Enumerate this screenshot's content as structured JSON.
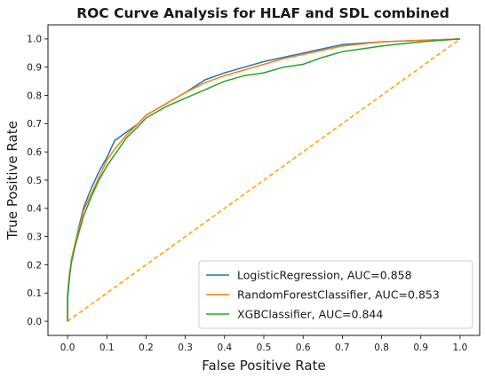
{
  "chart_data": {
    "type": "line",
    "title": "ROC Curve Analysis for HLAF and SDL combined",
    "xlabel": "False Positive Rate",
    "ylabel": "True Positive Rate",
    "xlim": [
      -0.05,
      1.05
    ],
    "ylim": [
      -0.05,
      1.05
    ],
    "x_ticks": [
      "0.0",
      "0.1",
      "0.2",
      "0.3",
      "0.4",
      "0.5",
      "0.6",
      "0.7",
      "0.8",
      "0.9",
      "1.0"
    ],
    "y_ticks": [
      "0.0",
      "0.1",
      "0.2",
      "0.3",
      "0.4",
      "0.5",
      "0.6",
      "0.7",
      "0.8",
      "0.9",
      "1.0"
    ],
    "legend_position": "lower-right",
    "grid": false,
    "series": [
      {
        "name": "LogisticRegression, AUC=0.858",
        "color": "#1f77b4",
        "style": "solid",
        "points": [
          [
            0,
            0
          ],
          [
            0,
            0.08
          ],
          [
            0.005,
            0.16
          ],
          [
            0.01,
            0.22
          ],
          [
            0.02,
            0.28
          ],
          [
            0.03,
            0.34
          ],
          [
            0.04,
            0.4
          ],
          [
            0.06,
            0.47
          ],
          [
            0.08,
            0.53
          ],
          [
            0.1,
            0.58
          ],
          [
            0.12,
            0.64
          ],
          [
            0.15,
            0.67
          ],
          [
            0.18,
            0.7
          ],
          [
            0.2,
            0.73
          ],
          [
            0.25,
            0.77
          ],
          [
            0.3,
            0.81
          ],
          [
            0.35,
            0.855
          ],
          [
            0.4,
            0.88
          ],
          [
            0.45,
            0.9
          ],
          [
            0.5,
            0.92
          ],
          [
            0.55,
            0.935
          ],
          [
            0.6,
            0.95
          ],
          [
            0.65,
            0.965
          ],
          [
            0.7,
            0.98
          ],
          [
            0.8,
            0.99
          ],
          [
            0.9,
            0.995
          ],
          [
            1.0,
            1.0
          ]
        ]
      },
      {
        "name": "RandomForestClassifier, AUC=0.853",
        "color": "#ff7f0e",
        "style": "solid",
        "points": [
          [
            0,
            0
          ],
          [
            0,
            0.1
          ],
          [
            0.005,
            0.17
          ],
          [
            0.01,
            0.22
          ],
          [
            0.02,
            0.28
          ],
          [
            0.03,
            0.33
          ],
          [
            0.04,
            0.39
          ],
          [
            0.06,
            0.45
          ],
          [
            0.08,
            0.51
          ],
          [
            0.1,
            0.57
          ],
          [
            0.12,
            0.61
          ],
          [
            0.15,
            0.66
          ],
          [
            0.18,
            0.7
          ],
          [
            0.2,
            0.73
          ],
          [
            0.25,
            0.77
          ],
          [
            0.3,
            0.81
          ],
          [
            0.35,
            0.845
          ],
          [
            0.4,
            0.87
          ],
          [
            0.45,
            0.89
          ],
          [
            0.5,
            0.91
          ],
          [
            0.55,
            0.93
          ],
          [
            0.6,
            0.945
          ],
          [
            0.65,
            0.96
          ],
          [
            0.7,
            0.975
          ],
          [
            0.8,
            0.99
          ],
          [
            0.9,
            0.995
          ],
          [
            1.0,
            1.0
          ]
        ]
      },
      {
        "name": "XGBClassifier, AUC=0.844",
        "color": "#2ca02c",
        "style": "solid",
        "points": [
          [
            0,
            0
          ],
          [
            0,
            0.09
          ],
          [
            0.005,
            0.16
          ],
          [
            0.01,
            0.21
          ],
          [
            0.02,
            0.27
          ],
          [
            0.03,
            0.32
          ],
          [
            0.04,
            0.37
          ],
          [
            0.06,
            0.44
          ],
          [
            0.08,
            0.5
          ],
          [
            0.1,
            0.55
          ],
          [
            0.12,
            0.59
          ],
          [
            0.15,
            0.65
          ],
          [
            0.18,
            0.69
          ],
          [
            0.2,
            0.72
          ],
          [
            0.25,
            0.76
          ],
          [
            0.3,
            0.79
          ],
          [
            0.35,
            0.82
          ],
          [
            0.4,
            0.85
          ],
          [
            0.45,
            0.87
          ],
          [
            0.5,
            0.88
          ],
          [
            0.55,
            0.9
          ],
          [
            0.6,
            0.91
          ],
          [
            0.65,
            0.935
          ],
          [
            0.7,
            0.955
          ],
          [
            0.8,
            0.975
          ],
          [
            0.9,
            0.99
          ],
          [
            1.0,
            1.0
          ]
        ]
      },
      {
        "name": "",
        "color": "#ffa500",
        "style": "dashed",
        "points": [
          [
            0,
            0
          ],
          [
            1,
            1
          ]
        ]
      }
    ]
  }
}
